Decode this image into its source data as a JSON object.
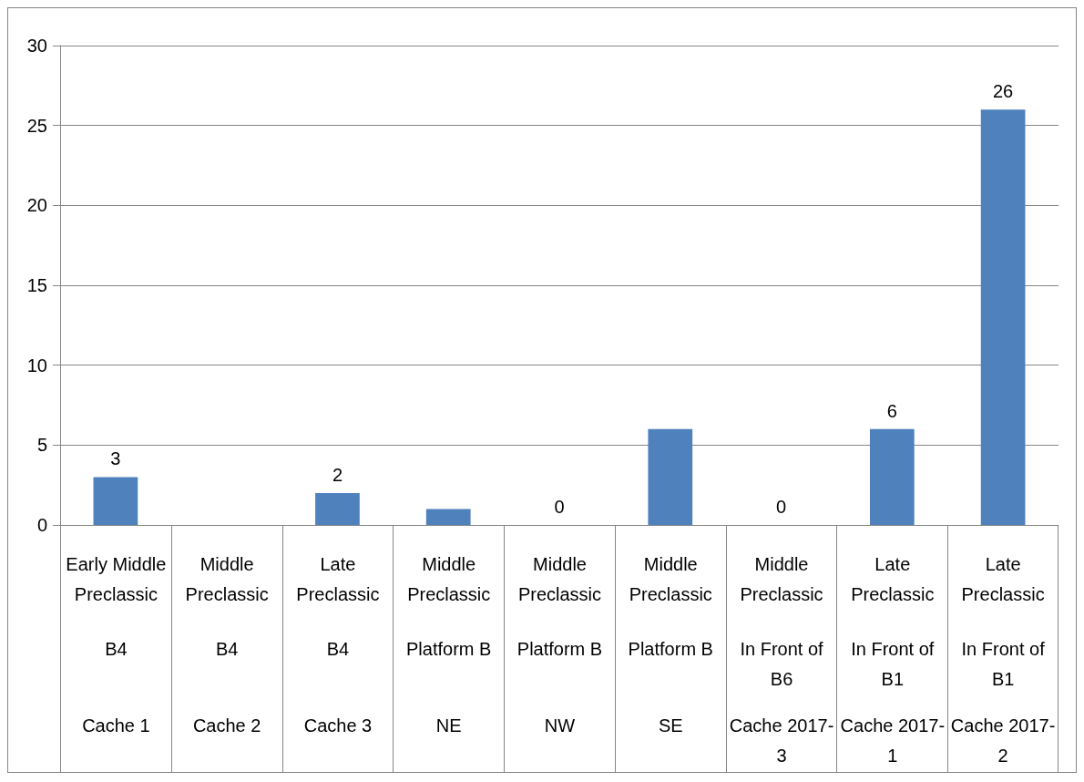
{
  "chart_data": {
    "type": "bar",
    "categories": [
      "Early Middle Preclassic\nB4\nCache 1",
      "Middle Preclassic\nB4\nCache 2",
      "Late Preclassic\nB4\nCache 3",
      "Middle Preclassic\nPlatform B\nNE",
      "Middle Preclassic\nPlatform B\nNW",
      "Middle Preclassic\nPlatform B\nSE",
      "Middle Preclassic\nIn Front of B6\nCache 2017-3",
      "Late Preclassic\nIn Front of B1\nCache 2017-1",
      "Late Preclassic\nIn Front of B1\nCache 2017-2"
    ],
    "values": [
      3,
      0,
      2,
      1,
      0,
      6,
      0,
      6,
      26
    ],
    "value_labels": [
      "3",
      null,
      "2",
      null,
      "0",
      null,
      "0",
      "6",
      "26"
    ],
    "color": "#4f81bd",
    "ylim": [
      0,
      30
    ],
    "yticks": [
      0,
      5,
      10,
      15,
      20,
      25,
      30
    ],
    "grid": "y"
  }
}
